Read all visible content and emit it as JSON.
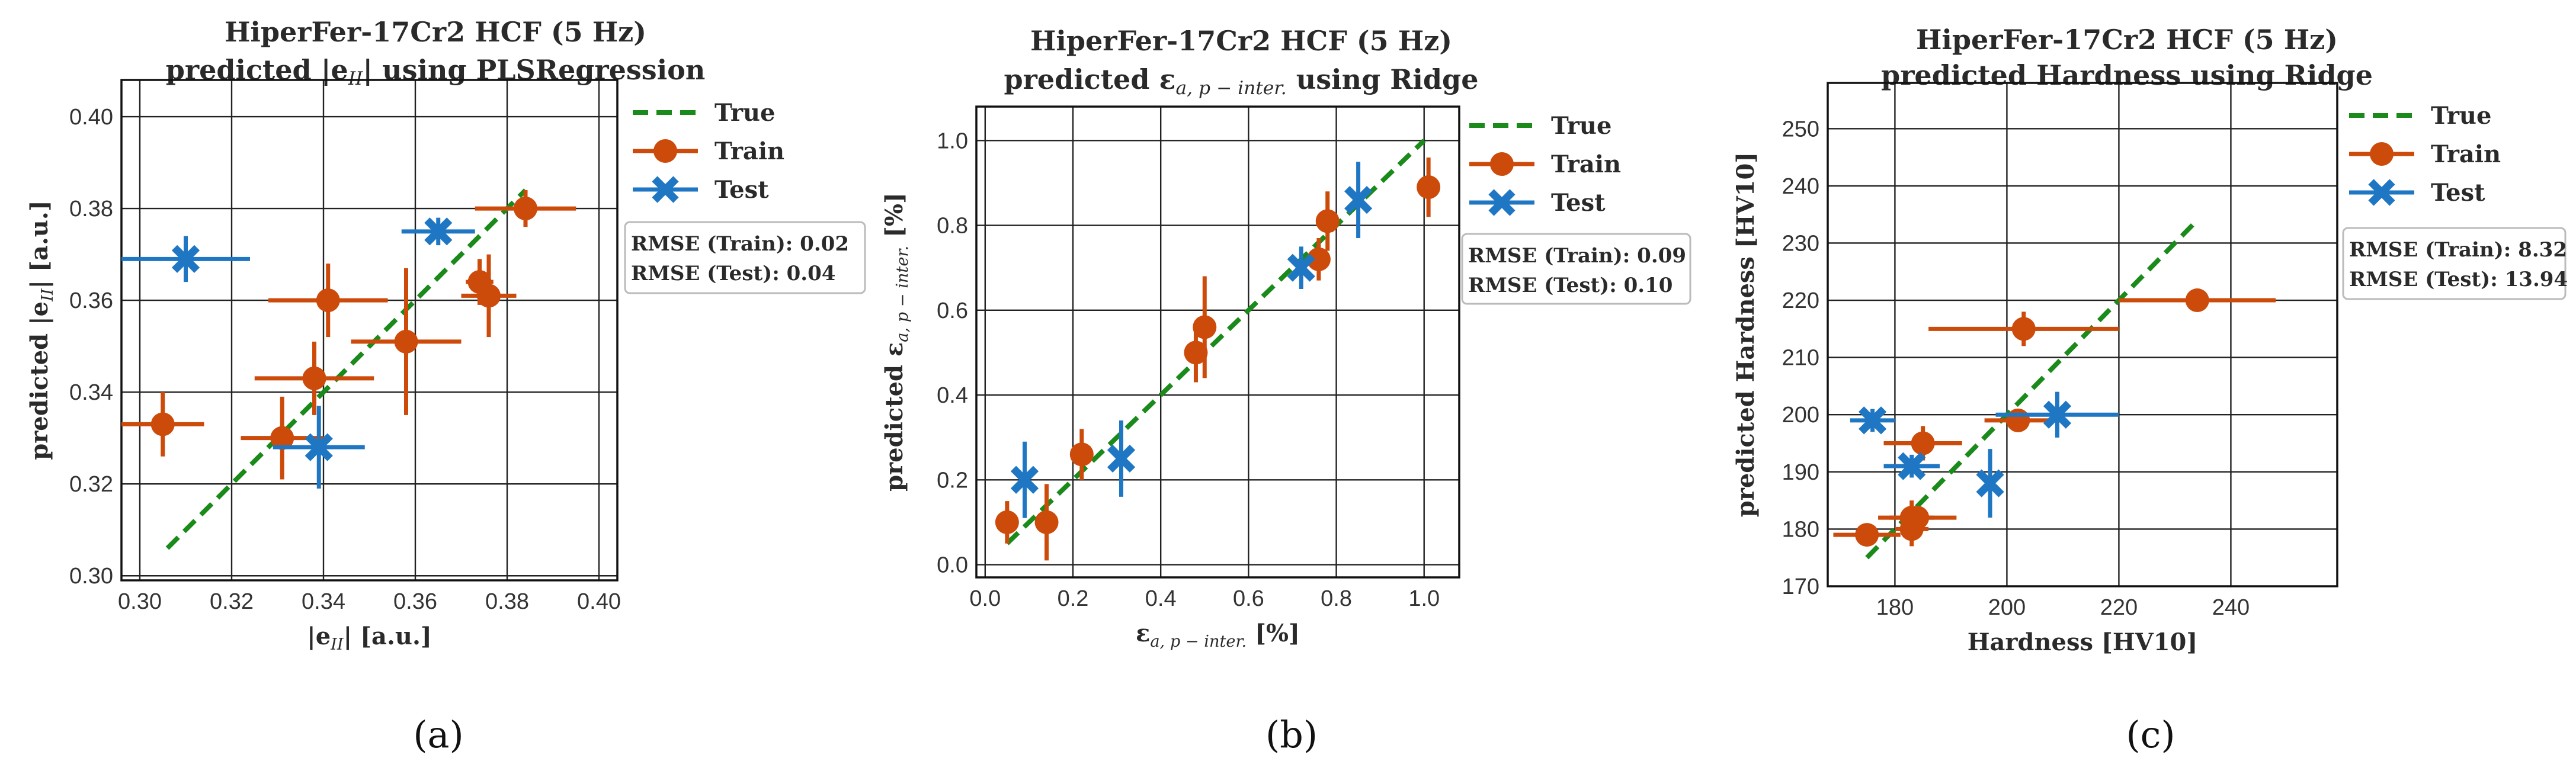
{
  "colors": {
    "train": "#cc4a0a",
    "test": "#1f77c4",
    "true": "#1a8a1a",
    "grid": "#222222",
    "frame": "#111111"
  },
  "chart_data": [
    {
      "type": "scatter",
      "title_line1": "HiperFer-17Cr2 HCF (5 Hz)",
      "title_line2": "predicted |e_II| using PLSRegression",
      "title_pre": "predicted |e",
      "title_sub": "II",
      "title_post": "| using PLSRegression",
      "xlabel_pre": "|e",
      "xlabel_sub": "II",
      "xlabel_post": "|  [a.u.]",
      "ylabel_pre": "predicted |e",
      "ylabel_sub": "II",
      "ylabel_post": "|  [a.u.]",
      "xlim": [
        0.296,
        0.404
      ],
      "ylim": [
        0.299,
        0.408
      ],
      "xticks": [
        0.3,
        0.32,
        0.34,
        0.36,
        0.38,
        0.4
      ],
      "xtick_labels": [
        "0.30",
        "0.32",
        "0.34",
        "0.36",
        "0.38",
        "0.40"
      ],
      "yticks": [
        0.3,
        0.32,
        0.34,
        0.36,
        0.38,
        0.4
      ],
      "ytick_labels": [
        "0.30",
        "0.32",
        "0.34",
        "0.36",
        "0.38",
        "0.40"
      ],
      "true_line": [
        [
          0.306,
          0.306
        ],
        [
          0.384,
          0.384
        ]
      ],
      "legend": [
        "True",
        "Train",
        "Test"
      ],
      "rmse_train": "RMSE (Train): 0.02",
      "rmse_test": "RMSE (Test): 0.04",
      "caption": "(a)",
      "train": [
        {
          "x": 0.305,
          "y": 0.333,
          "xerr": 0.009,
          "yerr": 0.007
        },
        {
          "x": 0.331,
          "y": 0.33,
          "xerr": 0.009,
          "yerr": 0.009
        },
        {
          "x": 0.338,
          "y": 0.343,
          "xerr": 0.013,
          "yerr": 0.008
        },
        {
          "x": 0.341,
          "y": 0.36,
          "xerr": 0.013,
          "yerr": 0.008
        },
        {
          "x": 0.358,
          "y": 0.351,
          "xerr": 0.012,
          "yerr": 0.016
        },
        {
          "x": 0.374,
          "y": 0.364,
          "xerr": 0.003,
          "yerr": 0.005
        },
        {
          "x": 0.376,
          "y": 0.361,
          "xerr": 0.006,
          "yerr": 0.009
        },
        {
          "x": 0.384,
          "y": 0.38,
          "xerr": 0.011,
          "yerr": 0.004
        }
      ],
      "test": [
        {
          "x": 0.31,
          "y": 0.369,
          "xerr": 0.014,
          "yerr": 0.005
        },
        {
          "x": 0.339,
          "y": 0.328,
          "xerr": 0.01,
          "yerr": 0.009
        },
        {
          "x": 0.365,
          "y": 0.375,
          "xerr": 0.008,
          "yerr": 0.003
        }
      ]
    },
    {
      "type": "scatter",
      "title_line1": "HiperFer-17Cr2 HCF (5 Hz)",
      "title_line2": "predicted ε_a,p-inter. using Ridge",
      "title_pre": "predicted ε",
      "title_sub": "a, p − inter.",
      "title_post": "  using Ridge",
      "xlabel_pre": "ε",
      "xlabel_sub": "a, p − inter.",
      "xlabel_post": "  [%]",
      "ylabel_pre": "predicted ε",
      "ylabel_sub": "a, p − inter.",
      "ylabel_post": "  [%]",
      "xlim": [
        -0.02,
        1.08
      ],
      "ylim": [
        -0.03,
        1.08
      ],
      "xticks": [
        0.0,
        0.2,
        0.4,
        0.6,
        0.8,
        1.0
      ],
      "xtick_labels": [
        "0.0",
        "0.2",
        "0.4",
        "0.6",
        "0.8",
        "1.0"
      ],
      "yticks": [
        0.0,
        0.2,
        0.4,
        0.6,
        0.8,
        1.0
      ],
      "ytick_labels": [
        "0.0",
        "0.2",
        "0.4",
        "0.6",
        "0.8",
        "1.0"
      ],
      "true_line": [
        [
          0.05,
          0.05
        ],
        [
          1.0,
          1.0
        ]
      ],
      "legend": [
        "True",
        "Train",
        "Test"
      ],
      "rmse_train": "RMSE (Train): 0.09",
      "rmse_test": "RMSE (Test): 0.10",
      "caption": "(b)",
      "train": [
        {
          "x": 0.05,
          "y": 0.1,
          "xerr": 0.0,
          "yerr": 0.05
        },
        {
          "x": 0.14,
          "y": 0.1,
          "xerr": 0.0,
          "yerr": 0.09
        },
        {
          "x": 0.22,
          "y": 0.26,
          "xerr": 0.0,
          "yerr": 0.06
        },
        {
          "x": 0.48,
          "y": 0.5,
          "xerr": 0.0,
          "yerr": 0.07
        },
        {
          "x": 0.5,
          "y": 0.56,
          "xerr": 0.0,
          "yerr": 0.12
        },
        {
          "x": 0.76,
          "y": 0.72,
          "xerr": 0.0,
          "yerr": 0.05
        },
        {
          "x": 0.78,
          "y": 0.81,
          "xerr": 0.0,
          "yerr": 0.07
        },
        {
          "x": 1.01,
          "y": 0.89,
          "xerr": 0.0,
          "yerr": 0.07
        }
      ],
      "test": [
        {
          "x": 0.09,
          "y": 0.2,
          "xerr": 0.0,
          "yerr": 0.09
        },
        {
          "x": 0.31,
          "y": 0.25,
          "xerr": 0.0,
          "yerr": 0.09
        },
        {
          "x": 0.72,
          "y": 0.7,
          "xerr": 0.0,
          "yerr": 0.05
        },
        {
          "x": 0.85,
          "y": 0.86,
          "xerr": 0.0,
          "yerr": 0.09
        }
      ]
    },
    {
      "type": "scatter",
      "title_line1": "HiperFer-17Cr2 HCF (5 Hz)",
      "title_line2": "predicted Hardness using Ridge",
      "title_pre": "predicted Hardness using Ridge",
      "title_sub": "",
      "title_post": "",
      "xlabel_pre": "Hardness  [HV10]",
      "xlabel_sub": "",
      "xlabel_post": "",
      "ylabel_pre": "predicted Hardness  [HV10]",
      "ylabel_sub": "",
      "ylabel_post": "",
      "xlim": [
        168,
        259
      ],
      "ylim": [
        170,
        258
      ],
      "xticks": [
        180,
        200,
        220,
        240
      ],
      "xtick_labels": [
        "180",
        "200",
        "220",
        "240"
      ],
      "yticks": [
        170,
        180,
        190,
        200,
        210,
        220,
        230,
        240,
        250
      ],
      "ytick_labels": [
        "170",
        "180",
        "190",
        "200",
        "210",
        "220",
        "230",
        "240",
        "250"
      ],
      "true_line": [
        [
          175,
          175
        ],
        [
          234,
          234
        ]
      ],
      "legend": [
        "True",
        "Train",
        "Test"
      ],
      "rmse_train": "RMSE (Train): 8.32",
      "rmse_test": "RMSE (Test): 13.94",
      "caption": "(c)",
      "train": [
        {
          "x": 175,
          "y": 179,
          "xerr": 6,
          "yerr": 2
        },
        {
          "x": 183,
          "y": 182,
          "xerr": 4,
          "yerr": 3
        },
        {
          "x": 183,
          "y": 180,
          "xerr": 3,
          "yerr": 3
        },
        {
          "x": 184,
          "y": 182,
          "xerr": 7,
          "yerr": 2
        },
        {
          "x": 185,
          "y": 195,
          "xerr": 7,
          "yerr": 3
        },
        {
          "x": 202,
          "y": 199,
          "xerr": 6,
          "yerr": 2
        },
        {
          "x": 203,
          "y": 215,
          "xerr": 17,
          "yerr": 3
        },
        {
          "x": 234,
          "y": 220,
          "xerr": 14,
          "yerr": 2
        }
      ],
      "test": [
        {
          "x": 176,
          "y": 199,
          "xerr": 4,
          "yerr": 2
        },
        {
          "x": 183,
          "y": 191,
          "xerr": 5,
          "yerr": 2
        },
        {
          "x": 197,
          "y": 188,
          "xerr": 0,
          "yerr": 6
        },
        {
          "x": 209,
          "y": 200,
          "xerr": 11,
          "yerr": 4
        }
      ]
    }
  ]
}
